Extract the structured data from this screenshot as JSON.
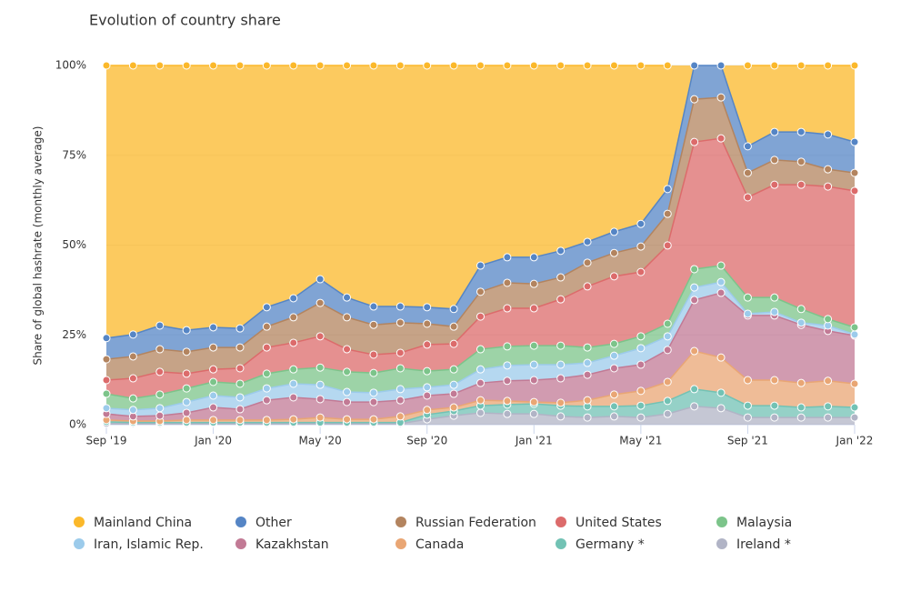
{
  "chart_data": {
    "type": "stacked-area",
    "title": "Evolution of country share",
    "y_label": "Share of global hashrate (monthly average)",
    "categories": [
      "Sep '19",
      null,
      null,
      null,
      "Jan '20",
      null,
      null,
      null,
      "May '20",
      null,
      null,
      null,
      "Sep '20",
      null,
      null,
      null,
      "Jan '21",
      null,
      null,
      null,
      "May '21",
      null,
      null,
      null,
      "Sep '21",
      null,
      null,
      null,
      "Jan '22"
    ],
    "ylim": [
      0,
      100
    ],
    "yticks": [
      {
        "value": 0,
        "label": "0%"
      },
      {
        "value": 25,
        "label": "25%"
      },
      {
        "value": 50,
        "label": "50%"
      },
      {
        "value": 75,
        "label": "75%"
      },
      {
        "value": 100,
        "label": "100%"
      }
    ],
    "grid": true,
    "legend": "bottom",
    "series": [
      {
        "name": "Mainland China",
        "color": "#fbb82a",
        "values": [
          75.9,
          74.9,
          72.4,
          73.7,
          72.9,
          73.2,
          67.3,
          64.8,
          59.5,
          64.6,
          67.1,
          67.1,
          67.3,
          67.8,
          55.7,
          53.4,
          53.4,
          51.6,
          49.1,
          46.3,
          44.1,
          34.4,
          null,
          null,
          22.5,
          18.5,
          18.5,
          19.2,
          21.3
        ]
      },
      {
        "name": "Other",
        "color": "#5585c5",
        "values": [
          5.9,
          6.1,
          6.6,
          6.0,
          5.6,
          5.3,
          5.4,
          5.3,
          6.6,
          5.5,
          5.1,
          4.5,
          4.6,
          4.9,
          7.3,
          7.1,
          7.4,
          7.4,
          5.8,
          5.9,
          6.3,
          6.9,
          9.4,
          8.9,
          7.4,
          7.8,
          8.3,
          9.7,
          8.6
        ]
      },
      {
        "name": "Russian Federation",
        "color": "#b3845f",
        "values": [
          5.8,
          6.1,
          6.3,
          6.1,
          6.1,
          5.8,
          5.8,
          7.1,
          9.3,
          8.9,
          8.3,
          8.4,
          5.8,
          4.8,
          6.9,
          7.1,
          6.8,
          6.1,
          6.6,
          6.5,
          7.1,
          8.8,
          11.9,
          11.4,
          6.8,
          6.9,
          6.4,
          4.8,
          5.0
        ]
      },
      {
        "name": "United States",
        "color": "#dc6b6b",
        "values": [
          3.8,
          5.6,
          6.3,
          4.1,
          3.5,
          4.3,
          7.3,
          7.4,
          8.7,
          6.3,
          5.1,
          4.3,
          7.4,
          7.1,
          9.1,
          10.6,
          10.4,
          12.9,
          17.0,
          18.8,
          17.9,
          21.8,
          35.4,
          35.4,
          27.9,
          31.4,
          34.6,
          36.9,
          38.0
        ]
      },
      {
        "name": "Malaysia",
        "color": "#7cc48a",
        "values": [
          4.0,
          3.2,
          3.8,
          3.8,
          3.8,
          3.8,
          4.1,
          4.0,
          4.8,
          5.6,
          5.5,
          5.8,
          4.5,
          4.3,
          5.6,
          5.3,
          5.3,
          5.3,
          4.3,
          3.3,
          3.3,
          3.5,
          5.1,
          4.6,
          4.5,
          4.0,
          3.8,
          1.8,
          2.0
        ]
      },
      {
        "name": "Iran, Islamic Rep.",
        "color": "#9ccbeb",
        "values": [
          1.6,
          1.8,
          2.1,
          3.0,
          3.3,
          3.3,
          3.3,
          3.8,
          4.0,
          2.8,
          2.6,
          3.1,
          2.3,
          2.5,
          3.8,
          4.3,
          4.3,
          3.8,
          3.3,
          3.5,
          4.6,
          3.8,
          3.5,
          3.0,
          0.5,
          1.0,
          0.6,
          1.5,
          0.3
        ]
      },
      {
        "name": "Kazakhstan",
        "color": "#c27a95",
        "values": [
          1.7,
          1.3,
          1.5,
          2.0,
          3.5,
          3.0,
          5.5,
          6.1,
          5.1,
          4.8,
          4.8,
          4.5,
          4.0,
          3.8,
          4.8,
          5.6,
          6.1,
          6.8,
          7.1,
          7.3,
          7.3,
          8.9,
          14.2,
          18.0,
          18.0,
          18.0,
          16.2,
          13.9,
          13.4
        ]
      },
      {
        "name": "Canada",
        "color": "#e9a674",
        "values": [
          0.5,
          0.4,
          0.4,
          0.7,
          0.7,
          0.7,
          0.7,
          0.9,
          1.4,
          0.9,
          0.9,
          1.7,
          1.3,
          1.0,
          1.5,
          1.0,
          0.5,
          0.8,
          1.7,
          3.3,
          4.1,
          5.3,
          10.6,
          9.8,
          7.1,
          7.1,
          6.8,
          7.1,
          6.6
        ]
      },
      {
        "name": "Germany *",
        "color": "#72c2b4",
        "values": [
          0.5,
          0.3,
          0.3,
          0.3,
          0.3,
          0.3,
          0.3,
          0.3,
          0.3,
          0.3,
          0.3,
          0.3,
          1.3,
          1.3,
          2.0,
          2.6,
          2.8,
          3.0,
          3.1,
          2.8,
          3.3,
          3.6,
          4.8,
          4.3,
          3.3,
          3.3,
          2.8,
          3.1,
          2.8
        ]
      },
      {
        "name": "Ireland *",
        "color": "#b1b4c6",
        "values": [
          0.3,
          0.3,
          0.3,
          0.3,
          0.3,
          0.3,
          0.3,
          0.3,
          0.3,
          0.3,
          0.3,
          0.3,
          1.5,
          2.5,
          3.3,
          3.0,
          3.0,
          2.3,
          2.0,
          2.3,
          2.0,
          3.0,
          5.1,
          4.6,
          2.0,
          2.0,
          2.0,
          2.0,
          2.0
        ]
      }
    ]
  }
}
